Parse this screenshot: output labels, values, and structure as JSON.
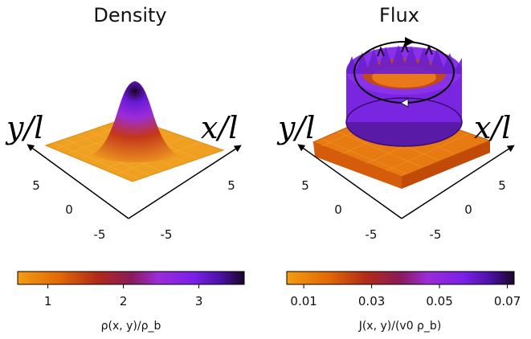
{
  "chart_data": [
    {
      "type": "surface",
      "title": "Density",
      "xlabel": "x/l",
      "ylabel": "y/l",
      "x_ticks": [
        "5",
        "-5"
      ],
      "y_ticks": [
        "5",
        "0",
        "-5"
      ],
      "zlim": [
        0.6,
        3.6
      ],
      "peak": 3.6,
      "baseline": 0.9,
      "colorbar": {
        "label": "ρ(x, y)/ρ_b",
        "ticks": [
          1,
          2,
          3
        ],
        "tick_labels": [
          "1",
          "2",
          "3"
        ],
        "range": [
          0.6,
          3.6
        ],
        "colors": [
          "#f39c12",
          "#e36a05",
          "#b22a18",
          "#8a1a5a",
          "#9b2cd8",
          "#7a1fe8",
          "#4a10a0",
          "#1a0528"
        ]
      }
    },
    {
      "type": "surface",
      "title": "Flux",
      "xlabel": "x/l",
      "ylabel": "y/l",
      "x_ticks": [
        "5",
        "0",
        "-5"
      ],
      "y_ticks": [
        "5",
        "0",
        "-5"
      ],
      "zlim": [
        0.005,
        0.072
      ],
      "ring_peak": 0.07,
      "baseline": 0.015,
      "circulation": "counterclockwise arrows around ring",
      "colorbar": {
        "label": "J(x, y)/(v0 ρ_b)",
        "ticks": [
          0.01,
          0.03,
          0.05,
          0.07
        ],
        "tick_labels": [
          "0.01",
          "0.03",
          "0.05",
          "0.07"
        ],
        "range": [
          0.005,
          0.072
        ],
        "colors": [
          "#f39c12",
          "#e36a05",
          "#b22a18",
          "#8a1a5a",
          "#9b2cd8",
          "#7a1fe8",
          "#4a10a0",
          "#1a0528"
        ]
      }
    }
  ]
}
